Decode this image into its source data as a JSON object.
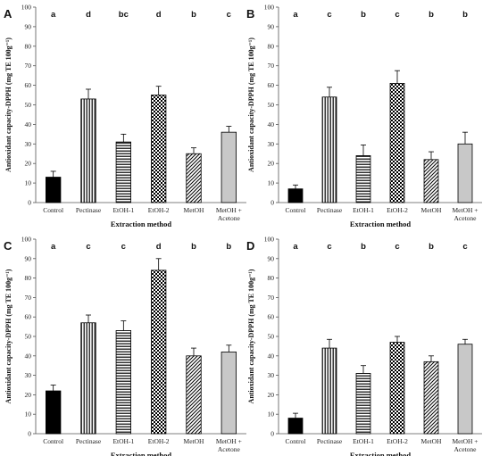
{
  "chart_data": [
    {
      "type": "bar",
      "panel": "A",
      "ylabel": "Antioxidant capacity-DPPH (mg TE 100g⁻¹)",
      "xlabel": "Extraction method",
      "ylim": [
        0,
        100
      ],
      "yticks": [
        0,
        10,
        20,
        30,
        40,
        50,
        60,
        70,
        80,
        90,
        100
      ],
      "categories": [
        "Control",
        "Pectinase",
        "EtOH-1",
        "EtOH-2",
        "MetOH",
        "MetOH + Acetone"
      ],
      "values": [
        13,
        53,
        31,
        55,
        25,
        36
      ],
      "errors": [
        3,
        5,
        4,
        4.5,
        3,
        3
      ],
      "significance": [
        "a",
        "d",
        "bc",
        "d",
        "b",
        "c"
      ],
      "patterns": [
        "solid-black",
        "vertical-lines",
        "horizontal-lines",
        "checker",
        "diagonal-lines",
        "solid-gray"
      ]
    },
    {
      "type": "bar",
      "panel": "B",
      "ylabel": "Antioxidant capacity-DPPH (mg TE 100g⁻¹)",
      "xlabel": "Extraction method",
      "ylim": [
        0,
        100
      ],
      "yticks": [
        0,
        10,
        20,
        30,
        40,
        50,
        60,
        70,
        80,
        90,
        100
      ],
      "categories": [
        "Control",
        "Pectinase",
        "EtOH-1",
        "EtOH-2",
        "MetOH",
        "MetOH + Acetone"
      ],
      "values": [
        7,
        54,
        24,
        61,
        22,
        30
      ],
      "errors": [
        2,
        5,
        5.5,
        6.5,
        4,
        6
      ],
      "significance": [
        "a",
        "c",
        "b",
        "c",
        "b",
        "b"
      ],
      "patterns": [
        "solid-black",
        "vertical-lines",
        "horizontal-lines",
        "checker",
        "diagonal-lines",
        "solid-gray"
      ]
    },
    {
      "type": "bar",
      "panel": "C",
      "ylabel": "Antioxidant capacity-DPPH (mg TE 100g⁻¹)",
      "xlabel": "Extraction method",
      "ylim": [
        0,
        100
      ],
      "yticks": [
        0,
        10,
        20,
        30,
        40,
        50,
        60,
        70,
        80,
        90,
        100
      ],
      "categories": [
        "Control",
        "Pectinase",
        "EtOH-1",
        "EtOH-2",
        "MetOH",
        "MetOH + Acetone"
      ],
      "values": [
        22,
        57,
        53,
        84,
        40,
        42
      ],
      "errors": [
        3,
        4,
        5,
        6,
        4,
        3.5
      ],
      "significance": [
        "a",
        "c",
        "c",
        "d",
        "b",
        "b"
      ],
      "patterns": [
        "solid-black",
        "vertical-lines",
        "horizontal-lines",
        "checker",
        "diagonal-lines",
        "solid-gray"
      ]
    },
    {
      "type": "bar",
      "panel": "D",
      "ylabel": "Antioxidant capacity-DPPH (mg TE 100g⁻¹)",
      "xlabel": "Extraction method",
      "ylim": [
        0,
        100
      ],
      "yticks": [
        0,
        10,
        20,
        30,
        40,
        50,
        60,
        70,
        80,
        90,
        100
      ],
      "categories": [
        "Control",
        "Pectinase",
        "EtOH-1",
        "EtOH-2",
        "MetOH",
        "MetOH + Acetone"
      ],
      "values": [
        8,
        44,
        31,
        47,
        37,
        46
      ],
      "errors": [
        2.5,
        4.5,
        4,
        3,
        3,
        2.5
      ],
      "significance": [
        "a",
        "c",
        "b",
        "c",
        "b",
        "c"
      ],
      "patterns": [
        "solid-black",
        "vertical-lines",
        "horizontal-lines",
        "checker",
        "diagonal-lines",
        "solid-gray"
      ]
    }
  ]
}
